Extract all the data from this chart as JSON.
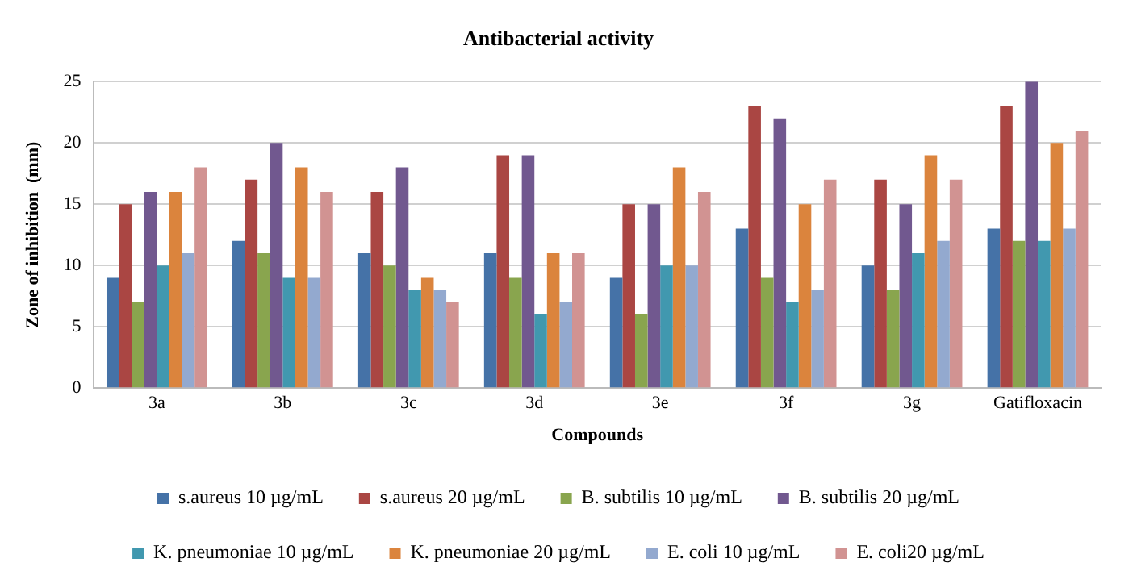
{
  "chart_data": {
    "type": "bar",
    "title": "Antibacterial activity",
    "xlabel": "Compounds",
    "ylabel": "Zone of inhibition  (mm)",
    "categories": [
      "3a",
      "3b",
      "3c",
      "3d",
      "3e",
      "3f",
      "3g",
      "Gatifloxacin"
    ],
    "series": [
      {
        "name": "s.aureus 10 µg/mL",
        "color": "#4572a7",
        "values": [
          9,
          12,
          11,
          11,
          9,
          13,
          10,
          13
        ]
      },
      {
        "name": "s.aureus 20 µg/mL",
        "color": "#aa4643",
        "values": [
          15,
          17,
          16,
          19,
          15,
          23,
          17,
          23
        ]
      },
      {
        "name": "B. subtilis 10 µg/mL",
        "color": "#89a54e",
        "values": [
          7,
          11,
          10,
          9,
          6,
          9,
          8,
          12
        ]
      },
      {
        "name": "B. subtilis 20 µg/mL",
        "color": "#71588f",
        "values": [
          16,
          20,
          18,
          19,
          15,
          22,
          15,
          25
        ]
      },
      {
        "name": "K. pneumoniae 10 µg/mL",
        "color": "#4198af",
        "values": [
          10,
          9,
          8,
          6,
          10,
          7,
          11,
          12
        ]
      },
      {
        "name": "K. pneumoniae 20 µg/mL",
        "color": "#db843d",
        "values": [
          16,
          18,
          9,
          11,
          18,
          15,
          19,
          20
        ]
      },
      {
        "name": "E. coli 10 µg/mL",
        "color": "#93a9cf",
        "values": [
          11,
          9,
          8,
          7,
          10,
          8,
          12,
          13
        ]
      },
      {
        "name": "E. coli20 µg/mL",
        "color": "#d19392",
        "values": [
          18,
          16,
          7,
          11,
          16,
          17,
          17,
          21
        ]
      }
    ],
    "ylim": [
      0,
      25
    ],
    "yticks": [
      0,
      5,
      10,
      15,
      20,
      25
    ],
    "grid": "y",
    "legend": "bottom"
  }
}
